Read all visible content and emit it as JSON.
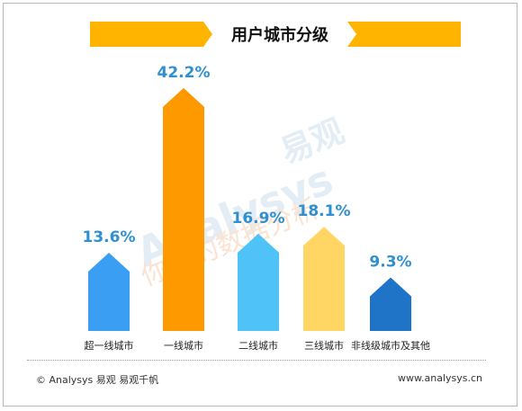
{
  "chart_data": {
    "type": "bar",
    "title": "用户城市分级",
    "categories": [
      "超一线城市",
      "一线城市",
      "二线城市",
      "三线城市",
      "非线级城市及其他"
    ],
    "values": [
      13.6,
      42.2,
      16.9,
      18.1,
      9.3
    ],
    "value_labels": [
      "13.6%",
      "42.2%",
      "16.9%",
      "18.1%",
      "9.3%"
    ],
    "colors": [
      "#3a9ff2",
      "#ff9900",
      "#4fc3f7",
      "#ffd564",
      "#1f74c8"
    ],
    "ylim": [
      0,
      45
    ],
    "grid": false,
    "legend": "none"
  },
  "colors": {
    "title_banner": "#ffb400",
    "value_label": "#2f8fd0",
    "watermark": "#e3edf5"
  },
  "watermark": {
    "brand": "Analysys",
    "brand_cn": "易观",
    "slogan": "你要的数据分析"
  },
  "footer": {
    "left": "© Analysys 易观 易观千帆",
    "right": "www.analysys.cn"
  }
}
